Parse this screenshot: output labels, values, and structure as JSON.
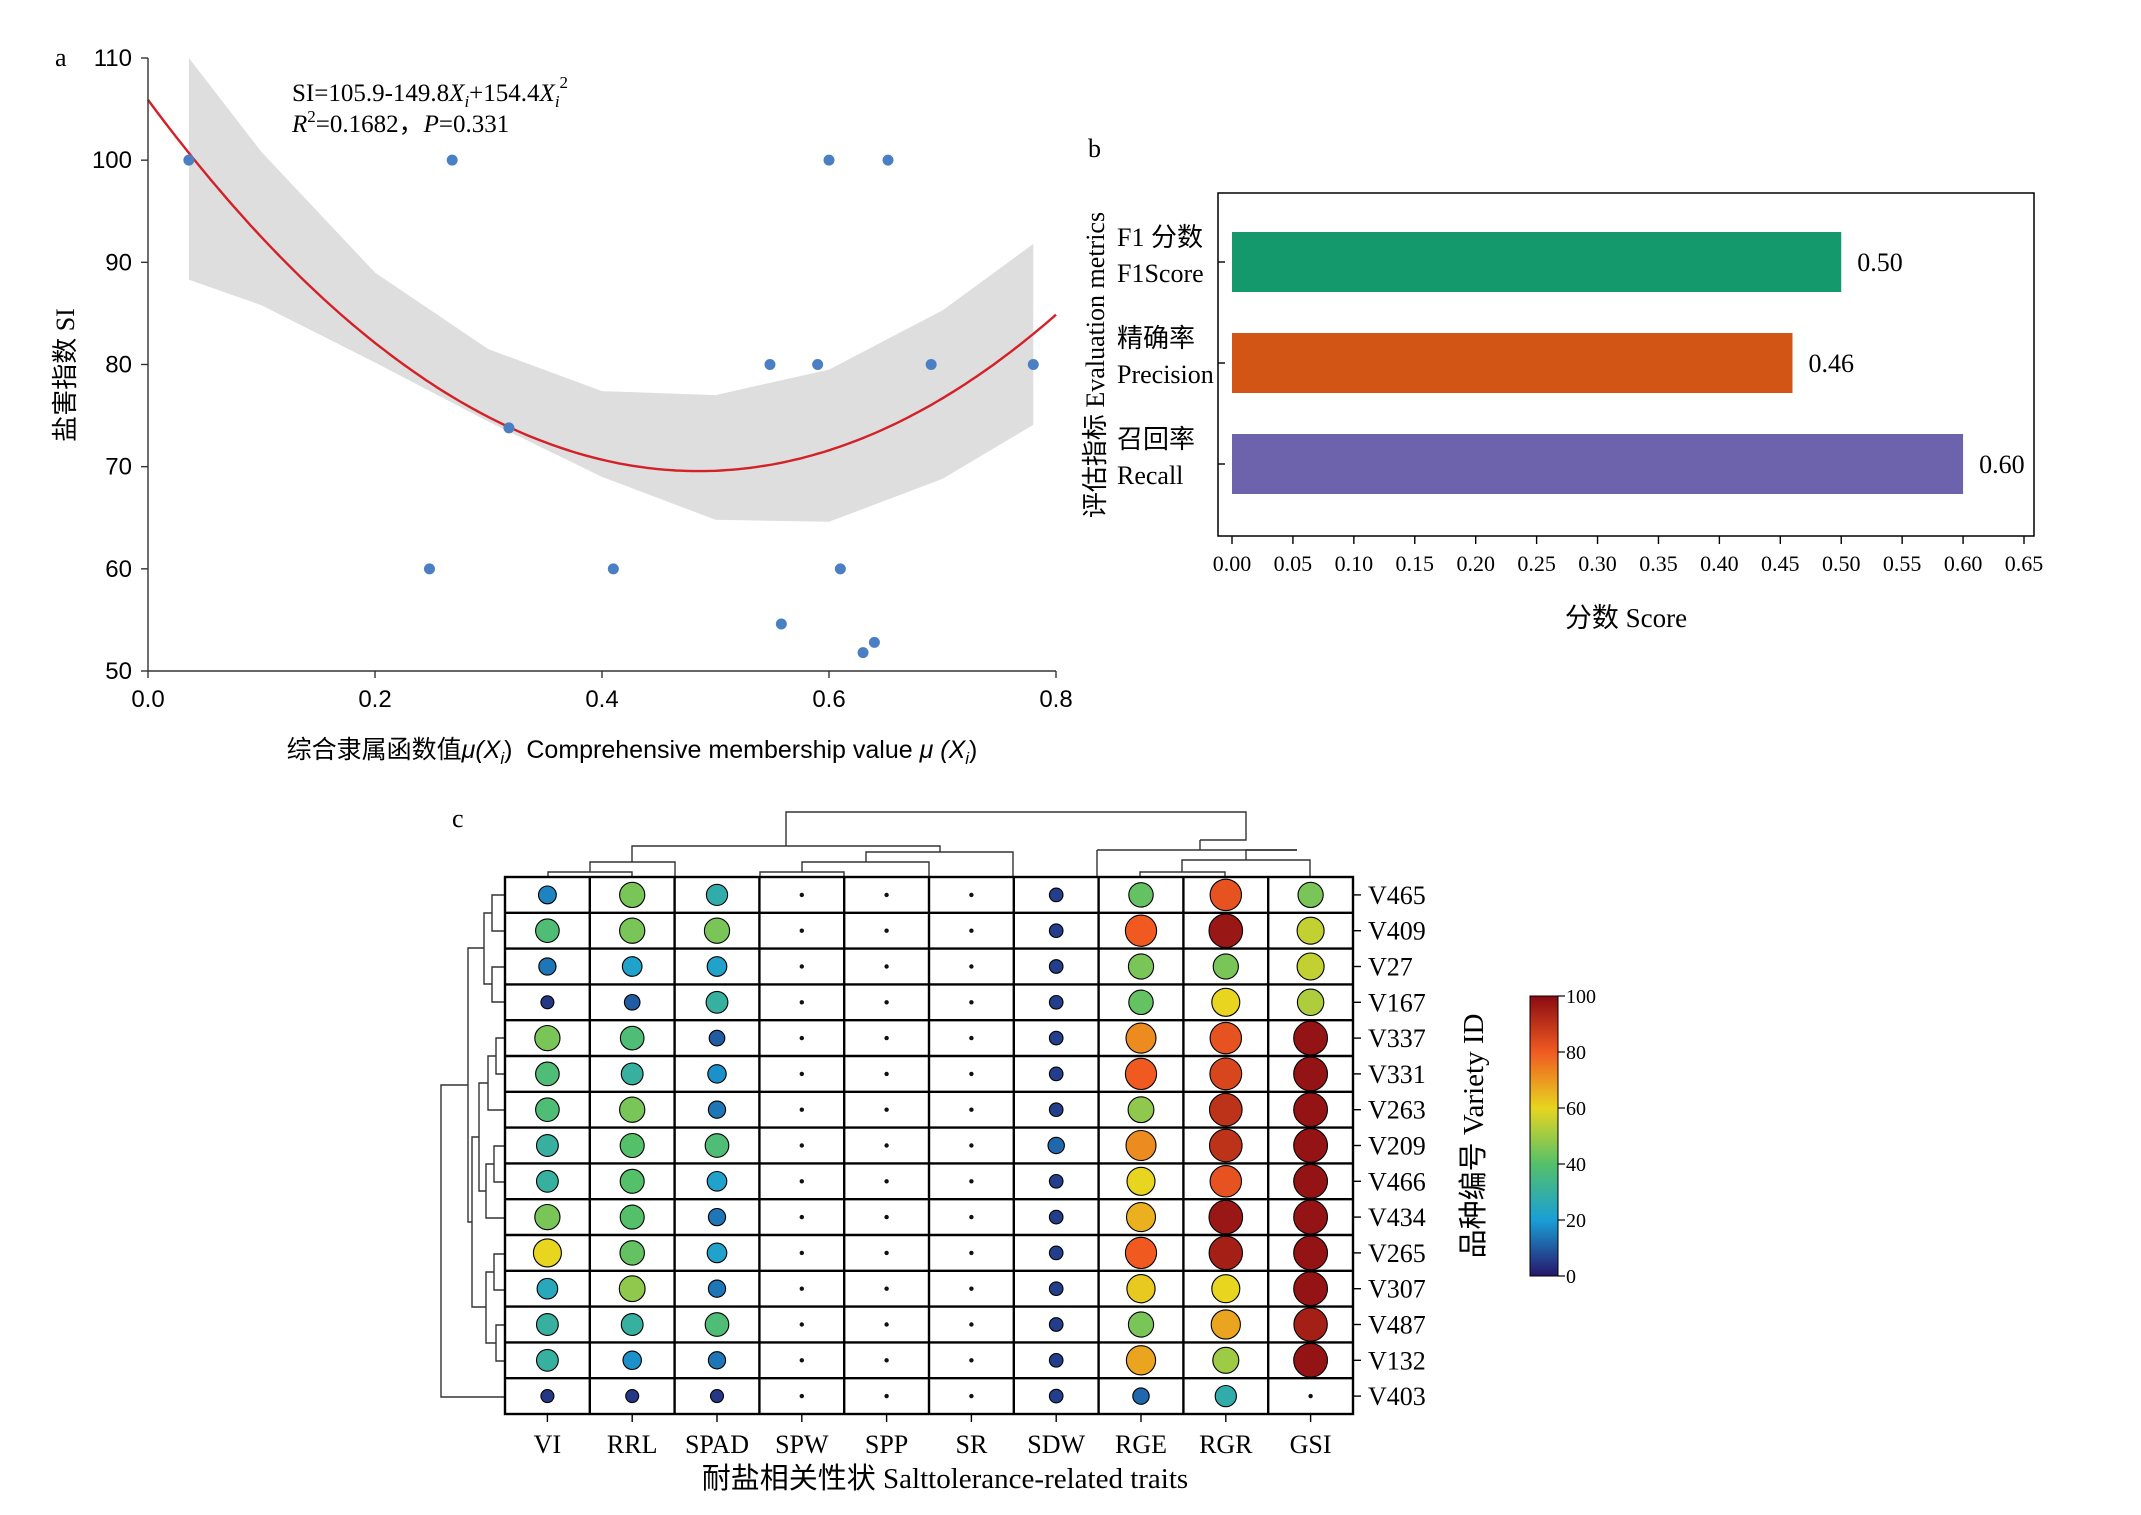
{
  "panels": {
    "a": {
      "panel_letter": "a",
      "equation_prefix": "SI=105.9-149.8",
      "equation_var1": "X",
      "equation_sub1": "i",
      "equation_mid": "+154.4",
      "equation_var2": "X",
      "equation_sub2": "i",
      "equation_sup": "2",
      "r2_label": "R",
      "r2_sup": "2",
      "r2_value": "=0.1682，",
      "p_label": "P",
      "p_value": "=0.331",
      "ylabel": "盐害指数 SI",
      "xlabel_zh": "综合隶属函数值",
      "xlabel_mu1": "μ(X",
      "xlabel_sub1": "i",
      "xlabel_close1": ")",
      "xlabel_en": "Comprehensive membership value ",
      "xlabel_mu2": "μ (X",
      "xlabel_sub2": "i",
      "xlabel_close2": ")"
    },
    "b": {
      "panel_letter": "b"
    },
    "c": {
      "panel_letter": "c"
    }
  },
  "chart_data": [
    {
      "id": "a",
      "type": "scatter",
      "title": "",
      "xlabel": "综合隶属函数值μ(Xi) Comprehensive membership value μ (Xi)",
      "ylabel": "盐害指数 SI",
      "xlim": [
        0.0,
        0.8
      ],
      "ylim": [
        50,
        110
      ],
      "xticks": [
        0.0,
        0.2,
        0.4,
        0.6,
        0.8
      ],
      "xtick_labels": [
        "0.0",
        "0.2",
        "0.4",
        "0.6",
        "0.8"
      ],
      "yticks": [
        50,
        60,
        70,
        80,
        90,
        100,
        110
      ],
      "ytick_labels": [
        "50",
        "60",
        "70",
        "80",
        "90",
        "100",
        "110"
      ],
      "points": [
        {
          "x": 0.036,
          "y": 100
        },
        {
          "x": 0.268,
          "y": 100
        },
        {
          "x": 0.6,
          "y": 100
        },
        {
          "x": 0.652,
          "y": 100
        },
        {
          "x": 0.548,
          "y": 80
        },
        {
          "x": 0.59,
          "y": 80
        },
        {
          "x": 0.69,
          "y": 80
        },
        {
          "x": 0.78,
          "y": 80
        },
        {
          "x": 0.318,
          "y": 73.8
        },
        {
          "x": 0.248,
          "y": 60
        },
        {
          "x": 0.41,
          "y": 60
        },
        {
          "x": 0.61,
          "y": 60
        },
        {
          "x": 0.558,
          "y": 54.6
        },
        {
          "x": 0.64,
          "y": 52.8
        },
        {
          "x": 0.63,
          "y": 51.8
        }
      ],
      "fit": {
        "intercept": 105.9,
        "linear": -149.8,
        "quadratic": 154.4,
        "x_range": [
          0.0,
          0.8
        ]
      },
      "confidence_band": {
        "x": [
          0.036,
          0.1,
          0.2,
          0.3,
          0.4,
          0.5,
          0.6,
          0.7,
          0.78
        ],
        "upper": [
          110,
          100.8,
          89.0,
          81.5,
          77.4,
          77.0,
          79.5,
          85.3,
          91.8
        ],
        "lower": [
          88.3,
          85.8,
          80.2,
          74.4,
          69.0,
          64.8,
          64.6,
          68.8,
          74.1
        ]
      },
      "colors": {
        "points": "#4a7fc4",
        "fit": "#d42027",
        "band": "#dedede"
      }
    },
    {
      "id": "b",
      "type": "bar",
      "orientation": "horizontal",
      "title": "",
      "xlabel": "分数 Score",
      "ylabel": "评估指标 Evaluation metrics",
      "xlim": [
        0.0,
        0.65
      ],
      "xticks": [
        0.0,
        0.05,
        0.1,
        0.15,
        0.2,
        0.25,
        0.3,
        0.35,
        0.4,
        0.45,
        0.5,
        0.55,
        0.6,
        0.65
      ],
      "xtick_labels": [
        "0.00",
        "0.05",
        "0.10",
        "0.15",
        "0.20",
        "0.25",
        "0.30",
        "0.35",
        "0.40",
        "0.45",
        "0.50",
        "0.55",
        "0.60",
        "0.65"
      ],
      "categories": [
        {
          "zh": "F1 分数",
          "en": "F1Score"
        },
        {
          "zh": "精确率",
          "en": "Precision"
        },
        {
          "zh": "召回率",
          "en": "Recall"
        }
      ],
      "values": [
        0.5,
        0.46,
        0.6
      ],
      "value_labels": [
        "0.50",
        "0.46",
        "0.60"
      ],
      "colors": [
        "#13996b",
        "#d35515",
        "#6d63ad"
      ]
    },
    {
      "id": "c",
      "type": "heatmap",
      "title": "",
      "xlabel": "耐盐相关性状 Salttolerance-related traits",
      "ylabel": "品种编号 Variety ID",
      "columns": [
        "VI",
        "RRL",
        "SPAD",
        "SPW",
        "SPP",
        "SR",
        "SDW",
        "RGE",
        "RGR",
        "GSI"
      ],
      "rows": [
        "V465",
        "V409",
        "V27",
        "V167",
        "V337",
        "V331",
        "V263",
        "V209",
        "V466",
        "V434",
        "V265",
        "V307",
        "V487",
        "V132",
        "V403"
      ],
      "values": [
        [
          16,
          45,
          28,
          0,
          0,
          0,
          6,
          42,
          82,
          45
        ],
        [
          38,
          45,
          45,
          0,
          0,
          0,
          6,
          80,
          97,
          55
        ],
        [
          14,
          22,
          22,
          0,
          0,
          0,
          6,
          45,
          45,
          55
        ],
        [
          5,
          10,
          30,
          0,
          0,
          0,
          6,
          42,
          60,
          52
        ],
        [
          45,
          38,
          10,
          0,
          0,
          0,
          6,
          72,
          82,
          98
        ],
        [
          38,
          30,
          18,
          0,
          0,
          0,
          6,
          80,
          85,
          98
        ],
        [
          38,
          45,
          14,
          0,
          0,
          0,
          6,
          48,
          90,
          98
        ],
        [
          30,
          40,
          38,
          0,
          0,
          0,
          12,
          72,
          90,
          98
        ],
        [
          30,
          40,
          22,
          0,
          0,
          0,
          6,
          60,
          82,
          98
        ],
        [
          45,
          40,
          14,
          0,
          0,
          0,
          6,
          66,
          97,
          98
        ],
        [
          60,
          42,
          22,
          0,
          0,
          0,
          6,
          80,
          95,
          98
        ],
        [
          25,
          48,
          14,
          0,
          0,
          0,
          6,
          62,
          60,
          98
        ],
        [
          30,
          30,
          38,
          0,
          0,
          0,
          6,
          45,
          68,
          95
        ],
        [
          30,
          18,
          14,
          0,
          0,
          0,
          6,
          68,
          50,
          98
        ],
        [
          5,
          5,
          5,
          0,
          0,
          0,
          6,
          12,
          28,
          0
        ]
      ],
      "colorbar": {
        "min": 0,
        "max": 100,
        "ticks": [
          0,
          20,
          40,
          60,
          80,
          100
        ],
        "tick_labels": [
          "0",
          "20",
          "40",
          "60",
          "80",
          "100"
        ]
      },
      "row_dendrogram": "left",
      "column_dendrogram": "top"
    }
  ]
}
